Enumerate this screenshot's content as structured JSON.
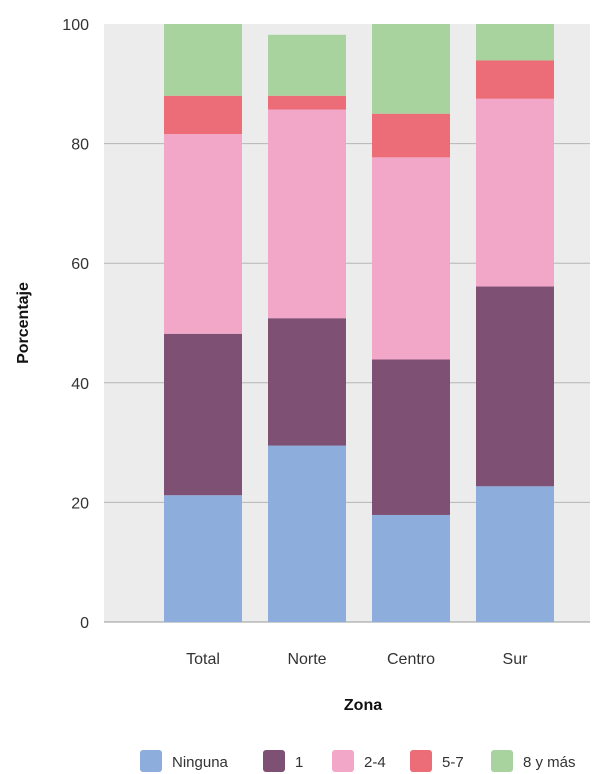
{
  "chart_data": {
    "type": "bar",
    "stacked": true,
    "categories": [
      "Total",
      "Norte",
      "Centro",
      "Sur"
    ],
    "series": [
      {
        "name": "Ninguna",
        "color": "#8daddc",
        "values": [
          21.2,
          29.5,
          17.9,
          22.7
        ]
      },
      {
        "name": "1",
        "color": "#7e5073",
        "values": [
          27.0,
          21.3,
          26.0,
          33.4
        ]
      },
      {
        "name": "2-4",
        "color": "#f2a7c8",
        "values": [
          33.4,
          34.9,
          33.8,
          31.4
        ]
      },
      {
        "name": "5-7",
        "color": "#ec6c77",
        "values": [
          6.4,
          2.3,
          7.3,
          6.4
        ]
      },
      {
        "name": "8 y más",
        "color": "#a8d29e",
        "values": [
          12.0,
          10.2,
          15.0,
          6.1
        ]
      }
    ],
    "xlabel": "Zona",
    "ylabel": "Porcentaje",
    "ylim": [
      0,
      100
    ],
    "yticks": [
      0,
      20,
      40,
      60,
      80,
      100
    ],
    "grid": true,
    "legend_position": "bottom"
  }
}
